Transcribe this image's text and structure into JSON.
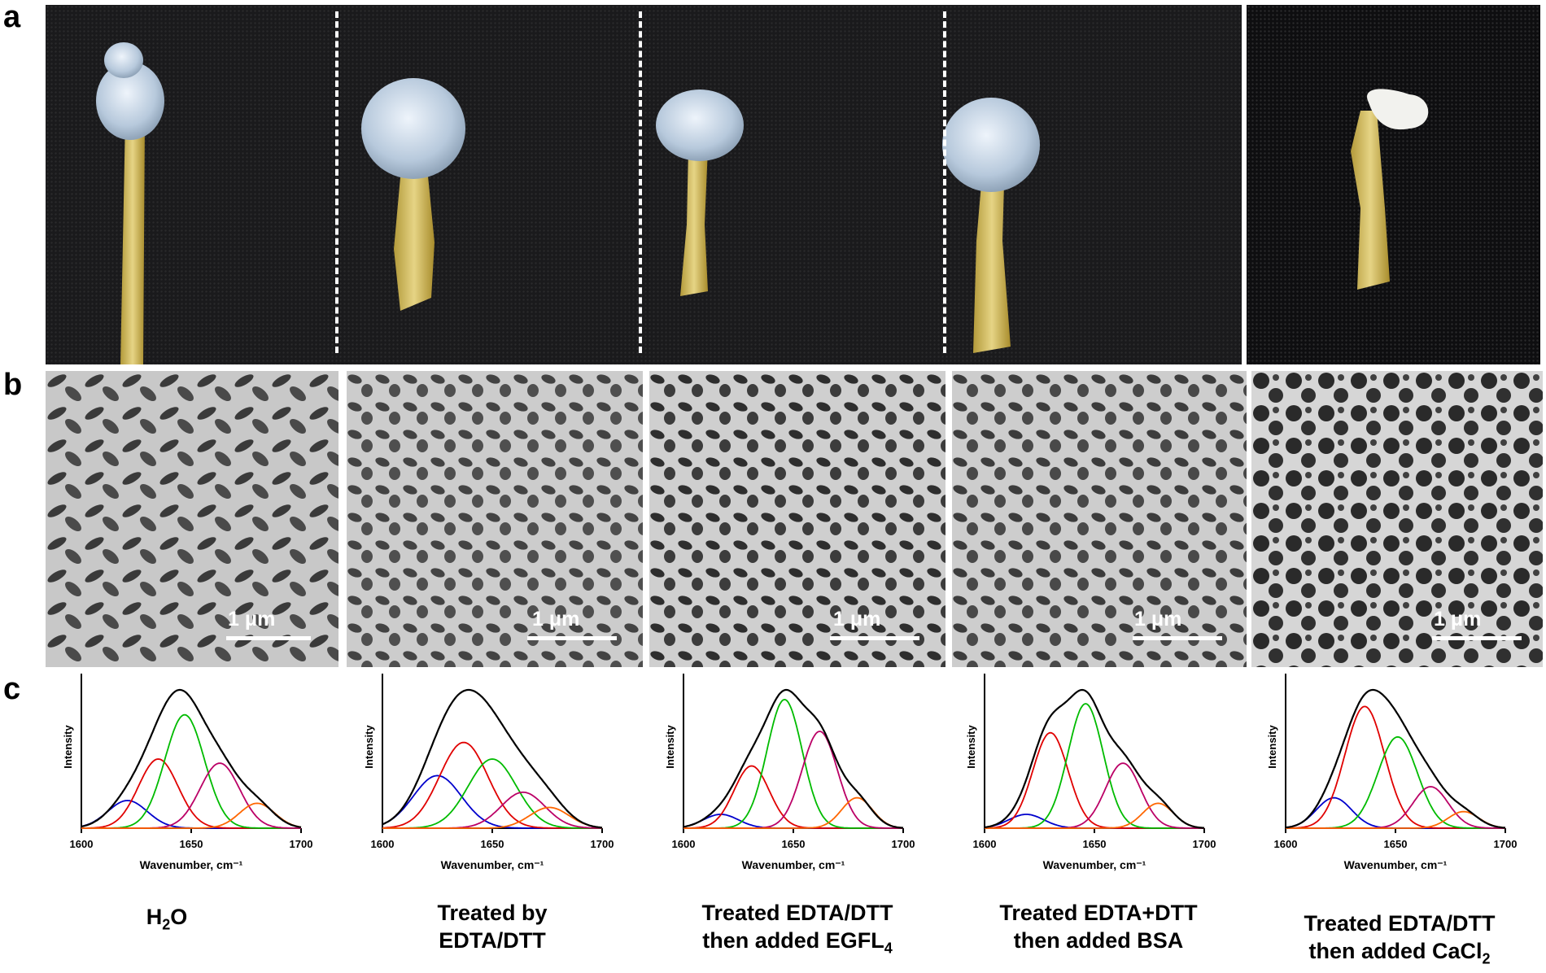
{
  "panel_labels": {
    "a": "a",
    "b": "b",
    "c": "c"
  },
  "scale_bar_text": "1 μm",
  "captions": [
    {
      "line1": "H",
      "sub1": "2",
      "line1_end": "O",
      "line2": ""
    },
    {
      "line1": "Treated by",
      "line2": "EDTA/DTT"
    },
    {
      "line1": "Treated EDTA/DTT",
      "line2": "then added EGFL",
      "sub2": "4"
    },
    {
      "line1": "Treated EDTA+DTT",
      "line2": "then added BSA"
    },
    {
      "line1": "Treated EDTA/DTT",
      "line2": "then added CaCl",
      "sub2": "2"
    }
  ],
  "chart_data": [
    {
      "type": "line",
      "title": "",
      "xlabel": "Wavenumber, cm⁻¹",
      "ylabel": "Intensity",
      "xlim": [
        1600,
        1700
      ],
      "xticks": [
        "1600",
        "1650",
        "1700"
      ],
      "envelope_peak": 1646,
      "series": [
        {
          "color": "#0000cc",
          "center": 1621,
          "height": 0.2,
          "width": 9
        },
        {
          "color": "#e00000",
          "center": 1635,
          "height": 0.5,
          "width": 9
        },
        {
          "color": "#00bb00",
          "center": 1647,
          "height": 0.82,
          "width": 9
        },
        {
          "color": "#bb0066",
          "center": 1663,
          "height": 0.47,
          "width": 9
        },
        {
          "color": "#ff6600",
          "center": 1680,
          "height": 0.18,
          "width": 8
        }
      ]
    },
    {
      "type": "line",
      "title": "",
      "xlabel": "Wavenumber, cm⁻¹",
      "ylabel": "Intensity",
      "xlim": [
        1600,
        1700
      ],
      "xticks": [
        "1600",
        "1650",
        "1700"
      ],
      "envelope_peak": 1640,
      "series": [
        {
          "color": "#0000cc",
          "center": 1625,
          "height": 0.38,
          "width": 11
        },
        {
          "color": "#e00000",
          "center": 1637,
          "height": 0.62,
          "width": 11
        },
        {
          "color": "#00bb00",
          "center": 1650,
          "height": 0.5,
          "width": 11
        },
        {
          "color": "#bb0066",
          "center": 1664,
          "height": 0.26,
          "width": 10
        },
        {
          "color": "#ff6600",
          "center": 1676,
          "height": 0.15,
          "width": 9
        }
      ]
    },
    {
      "type": "line",
      "title": "",
      "xlabel": "Wavenumber, cm⁻¹",
      "ylabel": "Intensity",
      "xlim": [
        1600,
        1700
      ],
      "xticks": [
        "1600",
        "1650",
        "1700"
      ],
      "envelope_peak": 1645,
      "series": [
        {
          "color": "#0000cc",
          "center": 1617,
          "height": 0.1,
          "width": 8
        },
        {
          "color": "#e00000",
          "center": 1631,
          "height": 0.45,
          "width": 8
        },
        {
          "color": "#00bb00",
          "center": 1646,
          "height": 0.93,
          "width": 8
        },
        {
          "color": "#bb0066",
          "center": 1662,
          "height": 0.7,
          "width": 8
        },
        {
          "color": "#ff6600",
          "center": 1679,
          "height": 0.22,
          "width": 7
        }
      ]
    },
    {
      "type": "line",
      "title": "",
      "xlabel": "Wavenumber, cm⁻¹",
      "ylabel": "Intensity",
      "xlim": [
        1600,
        1700
      ],
      "xticks": [
        "1600",
        "1650",
        "1700"
      ],
      "envelope_peak": 1643,
      "series": [
        {
          "color": "#0000cc",
          "center": 1619,
          "height": 0.1,
          "width": 8
        },
        {
          "color": "#e00000",
          "center": 1630,
          "height": 0.69,
          "width": 8
        },
        {
          "color": "#00bb00",
          "center": 1646,
          "height": 0.9,
          "width": 8
        },
        {
          "color": "#bb0066",
          "center": 1663,
          "height": 0.47,
          "width": 8
        },
        {
          "color": "#ff6600",
          "center": 1679,
          "height": 0.18,
          "width": 7
        }
      ]
    },
    {
      "type": "line",
      "title": "",
      "xlabel": "Wavenumber, cm⁻¹",
      "ylabel": "Intensity",
      "xlim": [
        1600,
        1700
      ],
      "xticks": [
        "1600",
        "1650",
        "1700"
      ],
      "envelope_peak": 1640,
      "series": [
        {
          "color": "#0000cc",
          "center": 1622,
          "height": 0.22,
          "width": 8
        },
        {
          "color": "#e00000",
          "center": 1636,
          "height": 0.88,
          "width": 9
        },
        {
          "color": "#00bb00",
          "center": 1651,
          "height": 0.66,
          "width": 9
        },
        {
          "color": "#bb0066",
          "center": 1666,
          "height": 0.3,
          "width": 8
        },
        {
          "color": "#ff6600",
          "center": 1681,
          "height": 0.12,
          "width": 7
        }
      ]
    }
  ]
}
